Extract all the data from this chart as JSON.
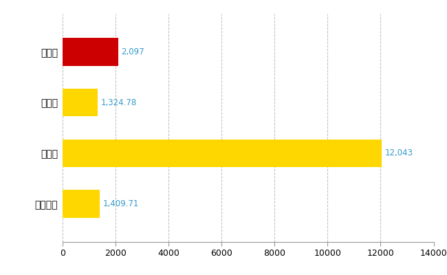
{
  "categories": [
    "新座市",
    "県平均",
    "県最大",
    "全国平均"
  ],
  "values": [
    2097,
    1324.78,
    12043,
    1409.71
  ],
  "bar_colors": [
    "#CC0000",
    "#FFD700",
    "#FFD700",
    "#FFD700"
  ],
  "value_labels": [
    "2,097",
    "1,324.78",
    "12,043",
    "1,409.71"
  ],
  "xlim": [
    0,
    14000
  ],
  "xticks": [
    0,
    2000,
    4000,
    6000,
    8000,
    10000,
    12000,
    14000
  ],
  "bar_height": 0.55,
  "label_color": "#3399CC",
  "label_fontsize": 8.5,
  "tick_fontsize": 9,
  "ytick_fontsize": 10,
  "background_color": "#FFFFFF",
  "grid_color": "#BBBBBB",
  "ylim_bottom": -0.75,
  "ylim_top": 3.75
}
